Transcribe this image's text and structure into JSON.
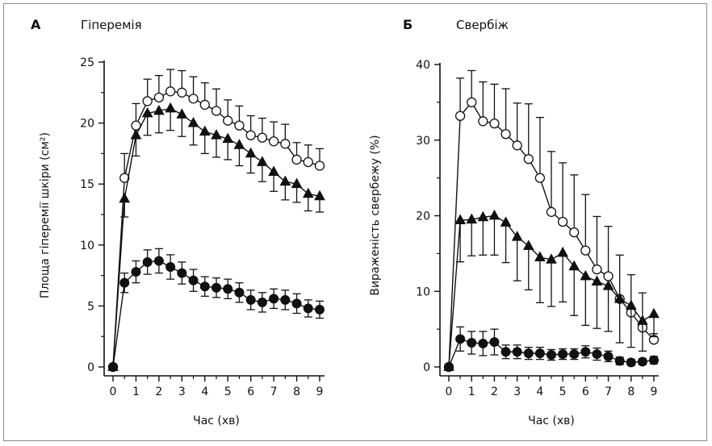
{
  "chart_data": [
    {
      "type": "line",
      "panel_letter": "А",
      "title": "Гіперемія",
      "xlabel": "Час (хв)",
      "ylabel": "Площа гіперемії шкіри (см²)",
      "xlim": [
        0,
        9
      ],
      "ylim": [
        0,
        25
      ],
      "x_ticks": [
        0,
        1,
        2,
        3,
        4,
        5,
        6,
        7,
        8,
        9
      ],
      "y_ticks": [
        0,
        5,
        10,
        15,
        20,
        25
      ],
      "grid": false,
      "x": [
        0,
        0.5,
        1,
        1.5,
        2,
        2.5,
        3,
        3.5,
        4,
        4.5,
        5,
        5.5,
        6,
        6.5,
        7,
        7.5,
        8,
        8.5,
        9
      ],
      "series": [
        {
          "marker": "open-circle",
          "values": [
            0,
            15.5,
            19.8,
            21.8,
            22.1,
            22.6,
            22.5,
            22.0,
            21.5,
            21.0,
            20.2,
            19.8,
            19.0,
            18.8,
            18.5,
            18.3,
            17.0,
            16.8,
            16.5
          ],
          "errors": [
            0,
            2.0,
            1.8,
            1.8,
            1.8,
            1.8,
            1.8,
            1.8,
            1.8,
            1.8,
            1.7,
            1.6,
            1.6,
            1.6,
            1.6,
            1.6,
            1.4,
            1.4,
            1.4
          ]
        },
        {
          "marker": "filled-triangle",
          "values": [
            0,
            13.8,
            19.0,
            20.8,
            21.0,
            21.2,
            20.7,
            20.0,
            19.3,
            19.0,
            18.7,
            18.2,
            17.5,
            16.8,
            16.0,
            15.2,
            15.0,
            14.2,
            14.0
          ],
          "errors": [
            0,
            1.5,
            1.7,
            1.8,
            1.8,
            1.8,
            1.8,
            1.8,
            1.8,
            1.8,
            1.7,
            1.7,
            1.6,
            1.6,
            1.6,
            1.5,
            1.5,
            1.4,
            1.3
          ]
        },
        {
          "marker": "filled-circle",
          "values": [
            0,
            6.9,
            7.8,
            8.6,
            8.7,
            8.2,
            7.7,
            7.1,
            6.6,
            6.5,
            6.4,
            6.1,
            5.5,
            5.3,
            5.6,
            5.5,
            5.2,
            4.8,
            4.7
          ],
          "errors": [
            0,
            0.8,
            0.9,
            1.0,
            1.0,
            1.0,
            0.9,
            0.9,
            0.8,
            0.8,
            0.8,
            0.8,
            0.8,
            0.8,
            0.8,
            0.8,
            0.8,
            0.7,
            0.7
          ]
        }
      ]
    },
    {
      "type": "line",
      "panel_letter": "Б",
      "title": "Свербіж",
      "xlabel": "Час (хв)",
      "ylabel": "Вираженість свербежу (%)",
      "xlim": [
        0,
        9
      ],
      "ylim": [
        0,
        40
      ],
      "x_ticks": [
        0,
        1,
        2,
        3,
        4,
        5,
        6,
        7,
        8,
        9
      ],
      "y_ticks": [
        0,
        10,
        20,
        30,
        40
      ],
      "grid": false,
      "x": [
        0,
        0.5,
        1,
        1.5,
        2,
        2.5,
        3,
        3.5,
        4,
        4.5,
        5,
        5.5,
        6,
        6.5,
        7,
        7.5,
        8,
        8.5,
        9
      ],
      "series": [
        {
          "marker": "open-circle",
          "values": [
            0,
            33.2,
            35.0,
            32.5,
            32.2,
            30.8,
            29.3,
            27.5,
            25.0,
            20.5,
            19.2,
            17.8,
            15.4,
            12.9,
            12.0,
            9.0,
            7.2,
            5.2,
            3.6
          ],
          "errors": [
            0,
            5.0,
            4.2,
            5.2,
            5.2,
            6.0,
            5.6,
            7.3,
            8.0,
            8.0,
            7.8,
            7.6,
            7.4,
            7.0,
            6.6,
            5.8,
            5.0,
            4.6,
            0.8
          ]
        },
        {
          "marker": "filled-triangle",
          "values": [
            0,
            19.4,
            19.5,
            19.8,
            20.0,
            19.1,
            17.2,
            16.0,
            14.5,
            14.2,
            15.1,
            13.3,
            12.0,
            11.3,
            10.7,
            9.0,
            8.1,
            6.1,
            7.0
          ],
          "errors": [
            0,
            5.5,
            4.8,
            5.0,
            5.2,
            5.3,
            5.8,
            5.8,
            6.0,
            6.2,
            6.5,
            6.5,
            6.5,
            6.2,
            6.0,
            5.8,
            5.5,
            4.0,
            3.0
          ]
        },
        {
          "marker": "filled-circle",
          "values": [
            0,
            3.7,
            3.2,
            3.1,
            3.3,
            2.0,
            2.0,
            1.8,
            1.8,
            1.6,
            1.7,
            1.7,
            2.0,
            1.7,
            1.4,
            0.8,
            0.6,
            0.7,
            0.9
          ],
          "errors": [
            0,
            1.6,
            1.5,
            1.6,
            1.7,
            0.9,
            0.9,
            0.8,
            0.8,
            0.7,
            0.7,
            0.7,
            0.8,
            0.8,
            0.7,
            0.5,
            0.4,
            0.4,
            0.5
          ]
        }
      ]
    }
  ]
}
